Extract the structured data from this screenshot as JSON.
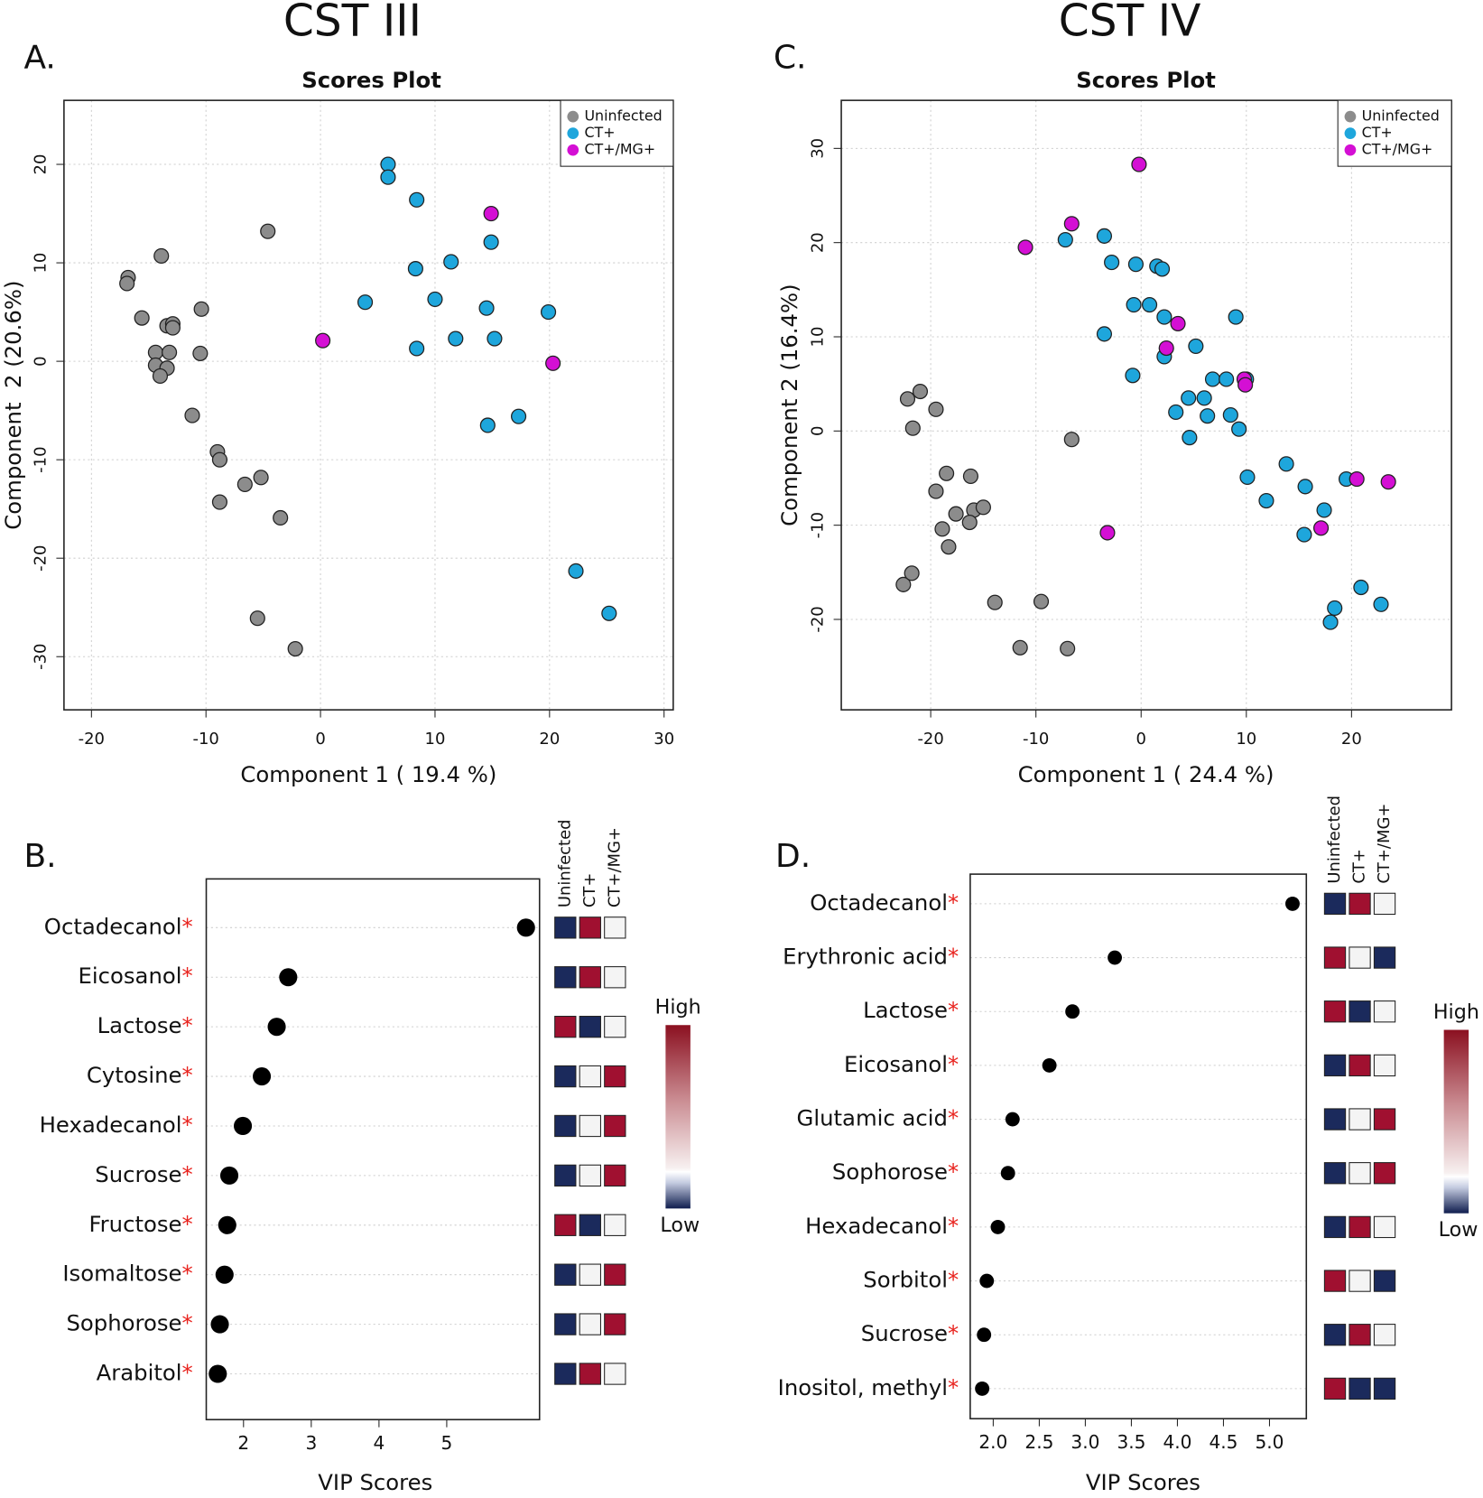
{
  "chart_data": [
    {
      "type": "scatter",
      "heading": "CST III",
      "panel": "A.",
      "title": "Scores Plot",
      "xlabel": "Component 1 ( 19.4 %)",
      "ylabel": "Component  2 (20.6%)",
      "xlim": [
        -22.4,
        30.8
      ],
      "ylim": [
        -35.4,
        26.5
      ],
      "xticks": [
        -20,
        -10,
        0,
        10,
        20,
        30
      ],
      "yticks": [
        -30,
        -20,
        -10,
        0,
        10,
        20
      ],
      "grid": true,
      "legend": "top-right",
      "series": [
        {
          "name": "Uninfected",
          "color": "#8c8c8c",
          "x": [
            -16.8,
            -16.9,
            -13.9,
            -15.6,
            -13.4,
            -12.9,
            -12.9,
            -10.4,
            -14.4,
            -13.2,
            -14.4,
            -13.4,
            -14.0,
            -10.5,
            -11.2,
            -9.0,
            -8.8,
            -8.8,
            -6.6,
            -5.2,
            -3.5,
            -4.6,
            -5.5,
            -2.2
          ],
          "y": [
            8.5,
            7.9,
            10.7,
            4.4,
            3.6,
            3.8,
            3.4,
            5.3,
            0.9,
            0.9,
            -0.4,
            -0.7,
            -1.5,
            0.8,
            -5.5,
            -9.2,
            -10.0,
            -14.3,
            -12.5,
            -11.8,
            -15.9,
            13.2,
            -26.1,
            -29.2
          ]
        },
        {
          "name": "CT+",
          "color": "#1ea6dc",
          "x": [
            5.9,
            5.9,
            8.4,
            14.9,
            11.4,
            8.3,
            10.0,
            3.9,
            14.5,
            19.9,
            11.8,
            15.2,
            8.4,
            17.3,
            14.6,
            22.3,
            25.2
          ],
          "y": [
            20.0,
            18.7,
            16.4,
            12.1,
            10.1,
            9.4,
            6.3,
            6.0,
            5.4,
            5.0,
            2.3,
            2.3,
            1.3,
            -5.6,
            -6.5,
            -21.3,
            -25.6
          ]
        },
        {
          "name": "CT+/MG+",
          "color": "#d40fd4",
          "x": [
            14.9,
            0.2,
            20.3
          ],
          "y": [
            15.0,
            2.1,
            -0.2
          ]
        }
      ]
    },
    {
      "type": "dot",
      "panel": "B.",
      "xlabel": "VIP Scores",
      "marker": "*",
      "marker_color": "#e8231e",
      "categories": [
        "Octadecanol",
        "Eicosanol",
        "Lactose",
        "Cytosine",
        "Hexadecanol",
        "Sucrose",
        "Fructose",
        "Isomaltose",
        "Sophorose",
        "Arabitol"
      ],
      "values": [
        6.17,
        2.66,
        2.49,
        2.27,
        1.99,
        1.79,
        1.76,
        1.72,
        1.65,
        1.62
      ],
      "xlim": [
        1.45,
        6.37
      ],
      "xticks": [
        2,
        3,
        4,
        5
      ],
      "grid": true,
      "color": "#000000",
      "heatmap": {
        "columns": [
          "Uninfected",
          "CT+",
          "CT+/MG+"
        ],
        "high": "High",
        "low": "Low",
        "cells": [
          [
            "#1b2a5c",
            "#a01030",
            "#f4f4f4"
          ],
          [
            "#1b2a5c",
            "#a01030",
            "#f4f4f4"
          ],
          [
            "#a01030",
            "#1b2a5c",
            "#f4f4f4"
          ],
          [
            "#1b2a5c",
            "#f4f4f4",
            "#a01030"
          ],
          [
            "#1b2a5c",
            "#f4f4f4",
            "#a01030"
          ],
          [
            "#1b2a5c",
            "#f4f4f4",
            "#a01030"
          ],
          [
            "#a01030",
            "#1b2a5c",
            "#f4f4f4"
          ],
          [
            "#1b2a5c",
            "#f4f4f4",
            "#a01030"
          ],
          [
            "#1b2a5c",
            "#f4f4f4",
            "#a01030"
          ],
          [
            "#1b2a5c",
            "#a01030",
            "#f4f4f4"
          ]
        ]
      }
    },
    {
      "type": "scatter",
      "heading": "CST IV",
      "panel": "C.",
      "title": "Scores Plot",
      "xlabel": "Component 1 ( 24.4 %)",
      "ylabel": "Component 2 (16.4%)",
      "xlim": [
        -28.5,
        29.5
      ],
      "ylim": [
        -29.6,
        35.1
      ],
      "xticks": [
        -20,
        -10,
        0,
        10,
        20
      ],
      "yticks": [
        -20,
        -10,
        0,
        10,
        20,
        30
      ],
      "grid": true,
      "legend": "top-right",
      "series": [
        {
          "name": "Uninfected",
          "color": "#8c8c8c",
          "x": [
            -22.2,
            -21.0,
            -19.5,
            -21.7,
            -6.6,
            -18.5,
            -16.2,
            -19.5,
            -17.6,
            -15.9,
            -15.0,
            -16.3,
            -18.9,
            -18.3,
            -22.6,
            -21.8,
            -13.9,
            -9.5,
            -11.5,
            -7.0
          ],
          "y": [
            3.4,
            4.2,
            2.3,
            0.3,
            -0.9,
            -4.5,
            -4.8,
            -6.4,
            -8.8,
            -8.4,
            -8.1,
            -9.7,
            -10.4,
            -12.3,
            -16.3,
            -15.1,
            -18.2,
            -18.1,
            -23.0,
            -23.1
          ]
        },
        {
          "name": "CT+",
          "color": "#1ea6dc",
          "x": [
            -7.2,
            -3.5,
            -2.8,
            -0.5,
            1.5,
            2.0,
            -0.7,
            0.8,
            2.2,
            9.0,
            -3.5,
            5.2,
            2.2,
            -0.8,
            6.8,
            8.1,
            10.0,
            4.5,
            6.0,
            3.3,
            6.3,
            8.5,
            9.3,
            4.6,
            10.1,
            13.8,
            15.6,
            19.5,
            11.9,
            17.4,
            15.5,
            20.9,
            18.4,
            22.8,
            18.0
          ],
          "y": [
            20.3,
            20.7,
            17.9,
            17.7,
            17.5,
            17.2,
            13.4,
            13.4,
            12.1,
            12.1,
            10.3,
            9.0,
            7.9,
            5.9,
            5.5,
            5.5,
            5.5,
            3.5,
            3.5,
            2.0,
            1.6,
            1.7,
            0.2,
            -0.7,
            -4.9,
            -3.5,
            -5.9,
            -5.1,
            -7.4,
            -8.4,
            -11.0,
            -16.6,
            -18.8,
            -18.4,
            -20.3
          ]
        },
        {
          "name": "CT+/MG+",
          "color": "#d40fd4",
          "x": [
            -0.2,
            -6.6,
            -11.0,
            3.5,
            2.4,
            9.8,
            9.9,
            20.5,
            23.5,
            17.1,
            -3.2
          ],
          "y": [
            28.3,
            22.0,
            19.5,
            11.4,
            8.8,
            5.5,
            4.9,
            -5.1,
            -5.4,
            -10.3,
            -10.8
          ]
        }
      ]
    },
    {
      "type": "dot",
      "panel": "D.",
      "xlabel": "VIP Scores",
      "marker": "*",
      "marker_color": "#e8231e",
      "categories": [
        "Octadecanol",
        "Erythronic acid",
        "Lactose",
        "Eicosanol",
        "Glutamic acid",
        "Sophorose",
        "Hexadecanol",
        "Sorbitol",
        "Sucrose",
        "Inositol, methyl"
      ],
      "values": [
        5.25,
        3.32,
        2.86,
        2.61,
        2.21,
        2.16,
        2.05,
        1.93,
        1.9,
        1.88
      ],
      "xlim": [
        1.75,
        5.4
      ],
      "xticks": [
        {
          "value": 2,
          "label": "2.0"
        },
        2.5,
        {
          "value": 3,
          "label": "3.0"
        },
        3.5,
        {
          "value": 4,
          "label": "4.0"
        },
        4.5,
        {
          "value": 5,
          "label": "5.0"
        }
      ],
      "grid": true,
      "color": "#000000",
      "heatmap": {
        "columns": [
          "Uninfected",
          "CT+",
          "CT+/MG+"
        ],
        "high": "High",
        "low": "Low",
        "cells": [
          [
            "#1b2a5c",
            "#a01030",
            "#f4f4f4"
          ],
          [
            "#a01030",
            "#f4f4f4",
            "#1b2a5c"
          ],
          [
            "#a01030",
            "#1b2a5c",
            "#f4f4f4"
          ],
          [
            "#1b2a5c",
            "#a01030",
            "#f4f4f4"
          ],
          [
            "#1b2a5c",
            "#f4f4f4",
            "#a01030"
          ],
          [
            "#1b2a5c",
            "#f4f4f4",
            "#a01030"
          ],
          [
            "#1b2a5c",
            "#a01030",
            "#f4f4f4"
          ],
          [
            "#a01030",
            "#f4f4f4",
            "#1b2a5c"
          ],
          [
            "#1b2a5c",
            "#a01030",
            "#f4f4f4"
          ],
          [
            "#a01030",
            "#1b2a5c",
            "#1b2a5c"
          ]
        ]
      }
    }
  ]
}
